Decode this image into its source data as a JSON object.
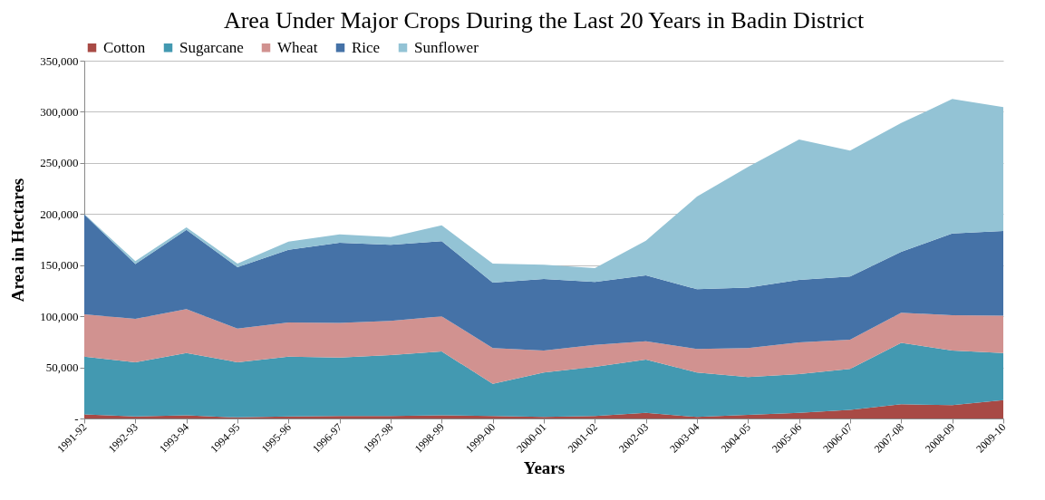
{
  "chart_data": {
    "type": "area",
    "stacked": true,
    "title": "Area Under Major Crops During the Last 20 Years in Badin District",
    "xlabel": "Years",
    "ylabel": "Area in Hectares",
    "categories": [
      "1991-92",
      "1992-93",
      "1993-94",
      "1994-95",
      "1995-96",
      "1996-97",
      "1997-98",
      "1998-99",
      "1999-00",
      "2000-01",
      "2001-02",
      "2002-03",
      "2003-04",
      "2004-05",
      "2005-06",
      "2006-07",
      "2007-08",
      "2008-09",
      "2009-10"
    ],
    "series": [
      {
        "name": "Cotton",
        "color": "#a84a45",
        "values": [
          4000,
          2000,
          3000,
          1000,
          2000,
          2500,
          2500,
          3000,
          2500,
          1500,
          2500,
          5500,
          1500,
          3500,
          5500,
          8500,
          14000,
          13000,
          18000
        ]
      },
      {
        "name": "Sugarcane",
        "color": "#4399b1",
        "values": [
          56500,
          53000,
          61000,
          54000,
          58500,
          57000,
          59500,
          62500,
          31500,
          43500,
          48000,
          52000,
          43500,
          37000,
          38000,
          40000,
          60000,
          53500,
          46000
        ]
      },
      {
        "name": "Wheat",
        "color": "#d19290",
        "values": [
          41500,
          42500,
          43000,
          33000,
          33500,
          34000,
          33500,
          34500,
          35000,
          21500,
          21500,
          18000,
          23000,
          28500,
          31000,
          28500,
          29500,
          34500,
          36500
        ]
      },
      {
        "name": "Rice",
        "color": "#4572a7",
        "values": [
          97500,
          53500,
          77500,
          60000,
          71000,
          78500,
          74500,
          73500,
          64000,
          70000,
          61500,
          64500,
          58500,
          59000,
          61000,
          62000,
          59500,
          80000,
          83000
        ]
      },
      {
        "name": "Sunflower",
        "color": "#93c3d5",
        "values": [
          500,
          3000,
          2500,
          3500,
          8000,
          8000,
          7500,
          15500,
          18500,
          14000,
          13500,
          34000,
          90500,
          118000,
          137500,
          123000,
          126000,
          131500,
          121000
        ]
      }
    ],
    "ylim": [
      0,
      350000
    ],
    "yticks": [
      {
        "value": 0,
        "label": "-"
      },
      {
        "value": 50000,
        "label": "50,000"
      },
      {
        "value": 100000,
        "label": "100,000"
      },
      {
        "value": 150000,
        "label": "150,000"
      },
      {
        "value": 200000,
        "label": "200,000"
      },
      {
        "value": 250000,
        "label": "250,000"
      },
      {
        "value": 300000,
        "label": "300,000"
      },
      {
        "value": 350000,
        "label": "350,000"
      }
    ],
    "grid": "y",
    "legend": "top"
  }
}
